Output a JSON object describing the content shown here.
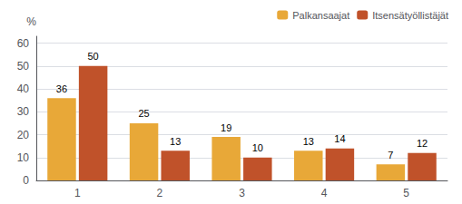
{
  "chart_data": {
    "type": "bar",
    "ylabel": "%",
    "categories": [
      1,
      2,
      3,
      4,
      5
    ],
    "series": [
      {
        "name": "Palkansaajat",
        "color": "#E8A838",
        "values": [
          36,
          25,
          19,
          13,
          7
        ]
      },
      {
        "name": "Itsensätyöllistäjät",
        "color": "#C0522A",
        "values": [
          50,
          13,
          10,
          14,
          12
        ]
      }
    ],
    "ylim": [
      0,
      63
    ],
    "yticks": [
      0,
      10,
      20,
      30,
      40,
      50,
      60
    ],
    "grid": true,
    "legend": "upper right",
    "data_labels": true
  }
}
